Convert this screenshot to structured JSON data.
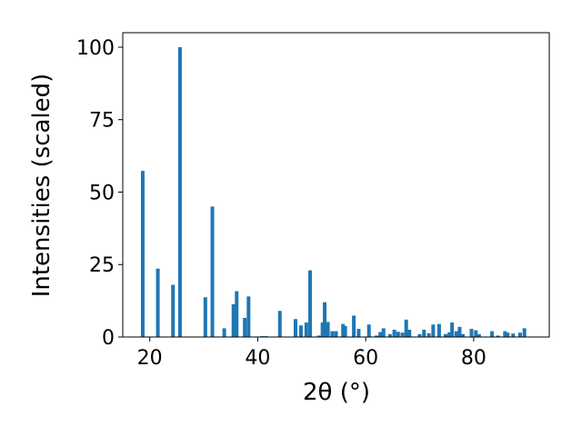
{
  "chart_data": {
    "type": "bar",
    "x_label": "2θ (°)",
    "y_label": "Intensities (scaled)",
    "color": "#1f77b4",
    "x": [
      18.7,
      21.5,
      24.3,
      25.6,
      30.3,
      31.6,
      33.8,
      35.5,
      36.1,
      37.6,
      38.3,
      40.8,
      41.5,
      44.1,
      47.0,
      48.0,
      49.0,
      49.7,
      51.3,
      52.0,
      52.4,
      53.0,
      53.8,
      54.5,
      55.8,
      56.2,
      57.8,
      58.7,
      60.6,
      62.0,
      62.7,
      63.3,
      64.5,
      65.3,
      66.0,
      66.8,
      67.5,
      68.1,
      70.0,
      70.8,
      71.7,
      72.5,
      73.6,
      74.8,
      75.5,
      76.0,
      76.8,
      77.4,
      78.0,
      79.6,
      80.4,
      81.0,
      83.4,
      84.5,
      85.8,
      86.3,
      87.3,
      88.6,
      89.4
    ],
    "values": [
      57.3,
      23.6,
      18,
      100,
      13.7,
      45,
      3,
      11.3,
      15.8,
      6.6,
      14,
      0.3,
      0.3,
      9,
      6.2,
      4,
      5,
      23,
      0.5,
      5,
      12,
      5.2,
      2,
      2,
      4.5,
      3.8,
      7.4,
      2.8,
      4.3,
      0.5,
      1.7,
      3,
      1,
      2.5,
      1.8,
      1.5,
      6,
      2.5,
      1,
      2.5,
      1.3,
      4.3,
      4.5,
      1,
      1.6,
      5,
      2,
      3.5,
      1,
      2.8,
      2.3,
      1,
      2,
      0.5,
      2,
      1.5,
      1.2,
      1.5,
      3
    ],
    "xlim": [
      15,
      94
    ],
    "ylim": [
      0,
      105
    ],
    "xticks": [
      20,
      40,
      60,
      80
    ],
    "yticks": [
      0,
      25,
      50,
      75,
      100
    ]
  }
}
